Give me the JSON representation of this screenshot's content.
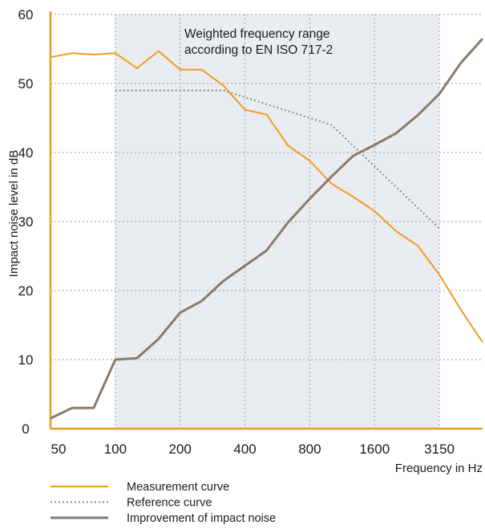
{
  "chart_data": {
    "type": "line",
    "xlabel": "Frequency in Hz",
    "ylabel": "Impact noise level in dB",
    "ylim": [
      0,
      60
    ],
    "yticks": [
      "0",
      "10",
      "20",
      "30",
      "40",
      "50",
      "60"
    ],
    "xticks": [
      "50",
      "100",
      "200",
      "400",
      "800",
      "1600",
      "3150"
    ],
    "x": [
      50,
      63,
      80,
      100,
      125,
      160,
      200,
      250,
      315,
      400,
      500,
      630,
      800,
      1000,
      1250,
      1600,
      2000,
      2500,
      3150,
      4000,
      5000
    ],
    "grid": "dotted",
    "shaded_range": {
      "from": 100,
      "to": 3150
    },
    "annotation": [
      "Weighted frequency range",
      "according to EN ISO 717-2"
    ],
    "series": [
      {
        "name": "Measurement curve",
        "color": "#f39a1e",
        "style": "solid",
        "values": [
          53.8,
          54.4,
          54.2,
          54.4,
          52.2,
          54.7,
          52.0,
          52.0,
          49.7,
          46.2,
          45.5,
          41.0,
          38.8,
          35.5,
          33.6,
          31.5,
          28.6,
          26.5,
          22.3,
          17.2,
          12.5
        ]
      },
      {
        "name": "Reference curve",
        "color": "#8c8c8c",
        "style": "dotted",
        "values": [
          null,
          null,
          null,
          49.0,
          49.0,
          49.0,
          49.0,
          49.0,
          49.0,
          48.0,
          47.0,
          46.0,
          45.0,
          44.0,
          41.0,
          38.0,
          35.0,
          32.0,
          29.0,
          null,
          null
        ]
      },
      {
        "name": "Improvement of impact noise",
        "color": "#8c7b69",
        "style": "solid-thick",
        "values": [
          1.5,
          3.0,
          3.0,
          10.0,
          10.2,
          13.0,
          16.8,
          18.5,
          21.4,
          23.6,
          25.8,
          29.9,
          33.3,
          36.5,
          39.5,
          41.1,
          42.8,
          45.4,
          48.5,
          53.0,
          56.5
        ]
      }
    ],
    "legend_position": "bottom"
  },
  "legend_items": [
    {
      "label": "Measurement curve",
      "color": "#f39a1e",
      "style": "solid"
    },
    {
      "label": "Reference curve",
      "color": "#8c8c8c",
      "style": "dotted"
    },
    {
      "label": "Improvement of impact noise",
      "color": "#8c7b69",
      "style": "solid-thick"
    }
  ]
}
